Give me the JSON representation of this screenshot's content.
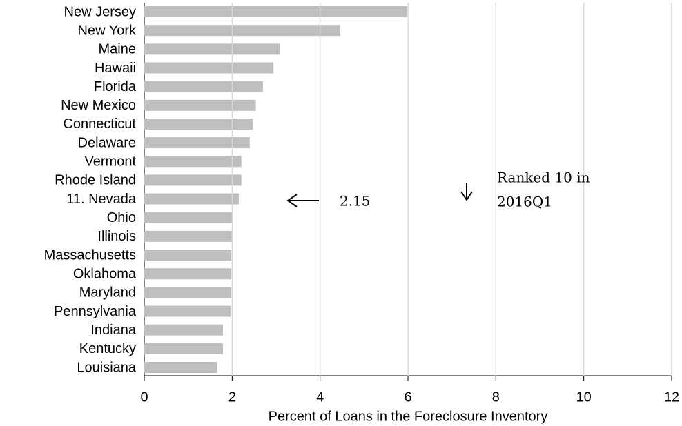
{
  "chart_data": {
    "type": "barh",
    "categories": [
      "New Jersey",
      "New York",
      "Maine",
      "Hawaii",
      "Florida",
      "New Mexico",
      "Connecticut",
      "Delaware",
      "Vermont",
      "Rhode Island",
      "11. Nevada",
      "Ohio",
      "Illinois",
      "Massachusetts",
      "Oklahoma",
      "Maryland",
      "Pennsylvania",
      "Indiana",
      "Kentucky",
      "Louisiana"
    ],
    "values": [
      5.98,
      4.46,
      3.08,
      2.94,
      2.7,
      2.54,
      2.47,
      2.4,
      2.21,
      2.21,
      2.15,
      2.01,
      1.99,
      1.98,
      1.98,
      1.98,
      1.97,
      1.79,
      1.79,
      1.66
    ],
    "color": "#bfbfbf",
    "tick_label_colors": [
      "#000000",
      "#000000",
      "#000000",
      "#000000",
      "#000000",
      "#000000",
      "#000000",
      "#000000",
      "#000000",
      "#000000",
      "#ff0000",
      "#000000",
      "#000000",
      "#000000",
      "#000000",
      "#000000",
      "#000000",
      "#000000",
      "#000000",
      "#000000"
    ],
    "xlabel": "Percent of Loans in the Foreclosure Inventory",
    "xlim": [
      0,
      12
    ],
    "xticks": [
      0,
      2,
      4,
      6,
      8,
      10,
      12
    ],
    "grid": true,
    "annotations": [
      "2.15",
      "Ranked 10 in",
      "2016Q1"
    ]
  }
}
